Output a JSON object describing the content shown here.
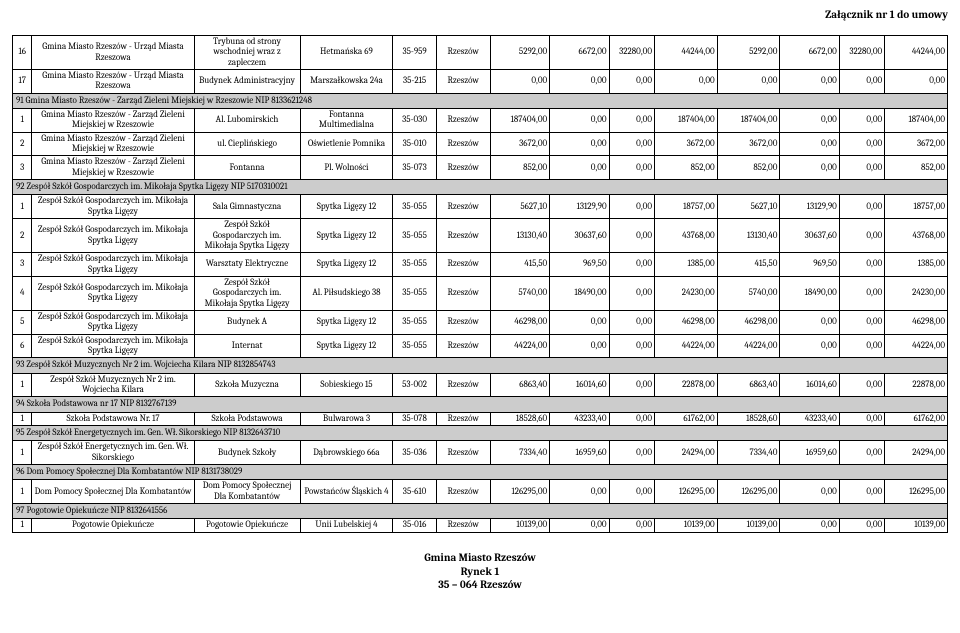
{
  "header_right": "Załącznik nr 1 do umowy",
  "footer": {
    "line1": "Gmina Miasto Rzeszów",
    "line2": "Rynek 1",
    "line3": "35 – 064 Rzeszów"
  },
  "colors": {
    "section_bg": "#cccccc",
    "border": "#000000",
    "text": "#000000",
    "background": "#ffffff"
  },
  "rows": [
    {
      "type": "data",
      "idx": "16",
      "c1": "Gmina Miasto Rzeszów - Urząd Miasta Rzeszowa",
      "c2": "Trybuna od strony wschodniej wraz z zapleczem",
      "c3": "Hetmańska 69",
      "c4": "35-959",
      "c5": "Rzeszów",
      "v": [
        "5292,00",
        "6672,00",
        "32280,00",
        "44244,00",
        "5292,00",
        "6672,00",
        "32280,00",
        "44244,00"
      ]
    },
    {
      "type": "data",
      "idx": "17",
      "c1": "Gmina Miasto Rzeszów - Urząd Miasta Rzeszowa",
      "c2": "Budynek Administracyjny",
      "c3": "Marszałkowska 24a",
      "c4": "35-215",
      "c5": "Rzeszów",
      "v": [
        "0,00",
        "0,00",
        "0,00",
        "0,00",
        "0,00",
        "0,00",
        "0,00",
        "0,00"
      ]
    },
    {
      "type": "section",
      "label": "91 Gmina Miasto Rzeszów - Zarząd Zieleni Miejskiej w Rzeszowie NIP 8133621248"
    },
    {
      "type": "data",
      "idx": "1",
      "c1": "Gmina Miasto Rzeszów - Zarząd Zieleni Miejskiej w Rzeszowie",
      "c2": "Al. Lubomirskich",
      "c3": "Fontanna Multimedialna",
      "c4": "35-030",
      "c5": "Rzeszów",
      "v": [
        "187404,00",
        "0,00",
        "0,00",
        "187404,00",
        "187404,00",
        "0,00",
        "0,00",
        "187404,00"
      ]
    },
    {
      "type": "data",
      "idx": "2",
      "c1": "Gmina Miasto Rzeszów - Zarząd Zieleni Miejskiej w Rzeszowie",
      "c2": "ul. Cieplińskiego",
      "c3": "Oświetlenie Pomnika",
      "c4": "35-010",
      "c5": "Rzeszów",
      "v": [
        "3672,00",
        "0,00",
        "0,00",
        "3672,00",
        "3672,00",
        "0,00",
        "0,00",
        "3672,00"
      ]
    },
    {
      "type": "data",
      "idx": "3",
      "c1": "Gmina Miasto Rzeszów - Zarząd Zieleni Miejskiej w Rzeszowie",
      "c2": "Fontanna",
      "c3": "Pl. Wolności",
      "c4": "35-073",
      "c5": "Rzeszów",
      "v": [
        "852,00",
        "0,00",
        "0,00",
        "852,00",
        "852,00",
        "0,00",
        "0,00",
        "852,00"
      ]
    },
    {
      "type": "section",
      "label": "92 Zespół Szkół Gospodarczych im. Mikołaja Spytka Ligęzy NIP 5170310021"
    },
    {
      "type": "data",
      "idx": "1",
      "c1": "Zespół Szkół Gospodarczych im. Mikołaja Spytka Ligęzy",
      "c2": "Sala Gimnastyczna",
      "c3": "Spytka Ligęzy 12",
      "c4": "35-055",
      "c5": "Rzeszów",
      "v": [
        "5627,10",
        "13129,90",
        "0,00",
        "18757,00",
        "5627,10",
        "13129,90",
        "0,00",
        "18757,00"
      ]
    },
    {
      "type": "data",
      "idx": "2",
      "c1": "Zespół Szkół Gospodarczych im. Mikołaja Spytka Ligęzy",
      "c2": "Zespół Szkół Gospodarczych im. Mikołaja Spytka Ligęzy",
      "c3": "Spytka Ligęzy 12",
      "c4": "35-055",
      "c5": "Rzeszów",
      "v": [
        "13130,40",
        "30637,60",
        "0,00",
        "43768,00",
        "13130,40",
        "30637,60",
        "0,00",
        "43768,00"
      ]
    },
    {
      "type": "data",
      "idx": "3",
      "c1": "Zespół Szkół Gospodarczych im. Mikołaja Spytka Ligęzy",
      "c2": "Warsztaty Elektryczne",
      "c3": "Spytka Ligęzy 12",
      "c4": "35-055",
      "c5": "Rzeszów",
      "v": [
        "415,50",
        "969,50",
        "0,00",
        "1385,00",
        "415,50",
        "969,50",
        "0,00",
        "1385,00"
      ]
    },
    {
      "type": "data",
      "idx": "4",
      "c1": "Zespół Szkół Gospodarczych im. Mikołaja Spytka Ligęzy",
      "c2": "Zespół Szkół Gospodarczych im. Mikołaja Spytka Ligęzy",
      "c3": "Al. Piłsudskiego 38",
      "c4": "35-055",
      "c5": "Rzeszów",
      "v": [
        "5740,00",
        "18490,00",
        "0,00",
        "24230,00",
        "5740,00",
        "18490,00",
        "0,00",
        "24230,00"
      ]
    },
    {
      "type": "data",
      "idx": "5",
      "c1": "Zespół Szkół Gospodarczych im. Mikołaja Spytka Ligęzy",
      "c2": "Budynek A",
      "c3": "Spytka Ligęzy 12",
      "c4": "35-055",
      "c5": "Rzeszów",
      "v": [
        "46298,00",
        "0,00",
        "0,00",
        "46298,00",
        "46298,00",
        "0,00",
        "0,00",
        "46298,00"
      ]
    },
    {
      "type": "data",
      "idx": "6",
      "c1": "Zespół Szkół Gospodarczych im. Mikołaja Spytka Ligęzy",
      "c2": "Internat",
      "c3": "Spytka Ligęzy 12",
      "c4": "35-055",
      "c5": "Rzeszów",
      "v": [
        "44224,00",
        "0,00",
        "0,00",
        "44224,00",
        "44224,00",
        "0,00",
        "0,00",
        "44224,00"
      ]
    },
    {
      "type": "section",
      "label": "93 Zespół Szkół Muzycznych Nr 2 im. Wojciecha Kilara NIP 8132854743"
    },
    {
      "type": "data",
      "idx": "1",
      "c1": "Zespół Szkół Muzycznych Nr 2 im. Wojciecha Kilara",
      "c2": "Szkoła Muzyczna",
      "c3": "Sobieskiego 15",
      "c4": "53-002",
      "c5": "Rzeszów",
      "v": [
        "6863,40",
        "16014,60",
        "0,00",
        "22878,00",
        "6863,40",
        "16014,60",
        "0,00",
        "22878,00"
      ]
    },
    {
      "type": "section",
      "label": "94 Szkoła Podstawowa nr 17 NIP 8132767139"
    },
    {
      "type": "data",
      "idx": "1",
      "c1": "Szkoła Podstawowa Nr. 17",
      "c2": "Szkoła Podstawowa",
      "c3": "Bulwarowa 3",
      "c4": "35-078",
      "c5": "Rzeszów",
      "v": [
        "18528,60",
        "43233,40",
        "0,00",
        "61762,00",
        "18528,60",
        "43233,40",
        "0,00",
        "61762,00"
      ]
    },
    {
      "type": "section",
      "label": "95 Zespół Szkół Energetycznych im. Gen. Wł. Sikorskiego NIP 8132643710"
    },
    {
      "type": "data",
      "idx": "1",
      "c1": "Zespół Szkół Energetycznych im. Gen. Wł. Sikorskiego",
      "c2": "Budynek Szkoły",
      "c3": "Dąbrowskiego 66a",
      "c4": "35-036",
      "c5": "Rzeszów",
      "v": [
        "7334,40",
        "16959,60",
        "0,00",
        "24294,00",
        "7334,40",
        "16959,60",
        "0,00",
        "24294,00"
      ]
    },
    {
      "type": "section",
      "label": "96 Dom Pomocy Społecznej Dla Kombatantów NIP 8131738029"
    },
    {
      "type": "data",
      "idx": "1",
      "c1": "Dom Pomocy Społecznej Dla Kombatantów",
      "c2": "Dom Pomocy Społecznej Dla Kombatantów",
      "c3": "Powstańców Śląskich 4",
      "c4": "35-610",
      "c5": "Rzeszów",
      "v": [
        "126295,00",
        "0,00",
        "0,00",
        "126295,00",
        "126295,00",
        "0,00",
        "0,00",
        "126295,00"
      ]
    },
    {
      "type": "section",
      "label": "97 Pogotowie Opiekuńcze NIP 8132641556"
    },
    {
      "type": "data",
      "idx": "1",
      "c1": "Pogotowie Opiekuńcze",
      "c2": "Pogotowie Opiekuńcze",
      "c3": "Unii Lubelskiej 4",
      "c4": "35-016",
      "c5": "Rzeszów",
      "v": [
        "10139,00",
        "0,00",
        "0,00",
        "10139,00",
        "10139,00",
        "0,00",
        "0,00",
        "10139,00"
      ]
    }
  ]
}
